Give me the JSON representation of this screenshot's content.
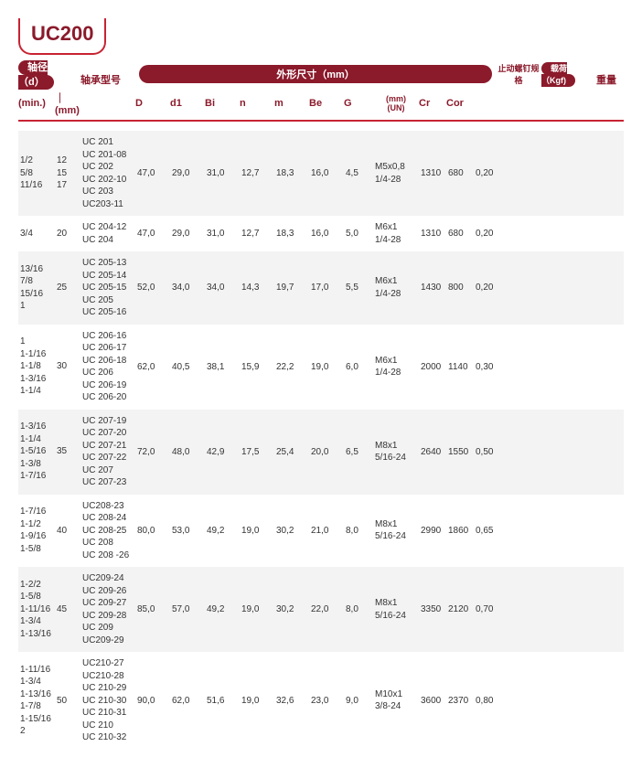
{
  "title": "UC200",
  "headers": {
    "shaft_label": "轴径（d）",
    "min": "(min.)",
    "mm_sep": "｜(mm)",
    "model": "轴承型号",
    "dims_label": "外形尺寸（mm）",
    "D": "D",
    "d1": "d1",
    "Bi": "Bi",
    "n": "n",
    "m": "m",
    "Be": "Be",
    "G": "G",
    "screw_label": "止动螺钉规格",
    "screw_sub": "(mm)\n(UN)",
    "load_label": "载荷（Kgf)",
    "Cr": "Cr",
    "Cor": "Cor",
    "weight": "重量"
  },
  "rows": [
    {
      "min": [
        "1/2",
        "5/8",
        "11/16"
      ],
      "mm": [
        "12",
        "15",
        "17"
      ],
      "model": [
        "UC 201",
        "UC 201-08",
        "UC 202",
        "UC 202-10",
        "UC 203",
        "UC203-11"
      ],
      "D": "47,0",
      "d1": "29,0",
      "Bi": "31,0",
      "n": "12,7",
      "m": "18,3",
      "Be": "16,0",
      "G": "4,5",
      "screw": [
        "M5x0,8",
        "1/4-28"
      ],
      "Cr": "1310",
      "Cor": "680",
      "wt": "0,20"
    },
    {
      "min": [
        "3/4"
      ],
      "mm": [
        "20"
      ],
      "model": [
        "UC 204-12",
        "UC 204"
      ],
      "D": "47,0",
      "d1": "29,0",
      "Bi": "31,0",
      "n": "12,7",
      "m": "18,3",
      "Be": "16,0",
      "G": "5,0",
      "screw": [
        "M6x1",
        "1/4-28"
      ],
      "Cr": "1310",
      "Cor": "680",
      "wt": "0,20"
    },
    {
      "min": [
        "13/16",
        "7/8",
        "15/16",
        "",
        "1"
      ],
      "mm": [
        "25"
      ],
      "model": [
        "UC 205-13",
        "UC 205-14",
        "UC 205-15",
        "UC 205",
        "UC 205-16"
      ],
      "D": "52,0",
      "d1": "34,0",
      "Bi": "34,0",
      "n": "14,3",
      "m": "19,7",
      "Be": "17,0",
      "G": "5,5",
      "screw": [
        "M6x1",
        "1/4-28"
      ],
      "Cr": "1430",
      "Cor": "800",
      "wt": "0,20"
    },
    {
      "min": [
        "1",
        "1-1/16",
        "1-1/8",
        "",
        "1-3/16",
        "1-1/4"
      ],
      "mm": [
        "30"
      ],
      "model": [
        "UC 206-16",
        "UC 206-17",
        "UC 206-18",
        "UC 206",
        "UC 206-19",
        "UC 206-20"
      ],
      "D": "62,0",
      "d1": "40,5",
      "Bi": "38,1",
      "n": "15,9",
      "m": "22,2",
      "Be": "19,0",
      "G": "6,0",
      "screw": [
        "M6x1",
        "1/4-28"
      ],
      "Cr": "2000",
      "Cor": "1140",
      "wt": "0,30"
    },
    {
      "min": [
        "1-3/16",
        "1-1/4",
        "1-5/16",
        "1-3/8",
        "",
        "1-7/16"
      ],
      "mm": [
        "35"
      ],
      "model": [
        "UC 207-19",
        "UC 207-20",
        "UC 207-21",
        "UC 207-22",
        "UC 207",
        "UC 207-23"
      ],
      "D": "72,0",
      "d1": "48,0",
      "Bi": "42,9",
      "n": "17,5",
      "m": "25,4",
      "Be": "20,0",
      "G": "6,5",
      "screw": [
        "M8x1",
        "5/16-24"
      ],
      "Cr": "2640",
      "Cor": "1550",
      "wt": "0,50"
    },
    {
      "min": [
        "1-7/16",
        "1-1/2",
        "1-9/16",
        "",
        "1-5/8"
      ],
      "mm": [
        "40"
      ],
      "model": [
        "UC208-23",
        "UC 208-24",
        "UC 208-25",
        "UC 208",
        "UC 208 -26"
      ],
      "D": "80,0",
      "d1": "53,0",
      "Bi": "49,2",
      "n": "19,0",
      "m": "30,2",
      "Be": "21,0",
      "G": "8,0",
      "screw": [
        "M8x1",
        "5/16-24"
      ],
      "Cr": "2990",
      "Cor": "1860",
      "wt": "0,65"
    },
    {
      "min": [
        "1-2/2",
        "1-5/8",
        "1-11/16",
        "1-3/4",
        "",
        "1-13/16"
      ],
      "mm": [
        "45"
      ],
      "model": [
        "UC209-24",
        "UC 209-26",
        "UC 209-27",
        "UC 209-28",
        "UC 209",
        "UC209-29"
      ],
      "D": "85,0",
      "d1": "57,0",
      "Bi": "49,2",
      "n": "19,0",
      "m": "30,2",
      "Be": "22,0",
      "G": "8,0",
      "screw": [
        "M8x1",
        "5/16-24"
      ],
      "Cr": "3350",
      "Cor": "2120",
      "wt": "0,70"
    },
    {
      "min": [
        "1-11/16",
        "1-3/4",
        "1-13/16",
        "1-7/8",
        "1-15/16",
        "",
        "2"
      ],
      "mm": [
        "50"
      ],
      "model": [
        "UC210-27",
        "UC210-28",
        "UC 210-29",
        "UC 210-30",
        "UC 210-31",
        "UC 210",
        "UC 210-32"
      ],
      "D": "90,0",
      "d1": "62,0",
      "Bi": "51,6",
      "n": "19,0",
      "m": "32,6",
      "Be": "23,0",
      "G": "9,0",
      "screw": [
        "M10x1",
        "3/8-24"
      ],
      "Cr": "3600",
      "Cor": "2370",
      "wt": "0,80"
    }
  ],
  "styles": {
    "brand_color": "#8b1a2b",
    "accent_color": "#c82333",
    "alt_row_bg": "#f3f3f3",
    "bg": "#ffffff",
    "font_size_body": 10,
    "font_size_header": 11,
    "font_size_title": 22
  }
}
